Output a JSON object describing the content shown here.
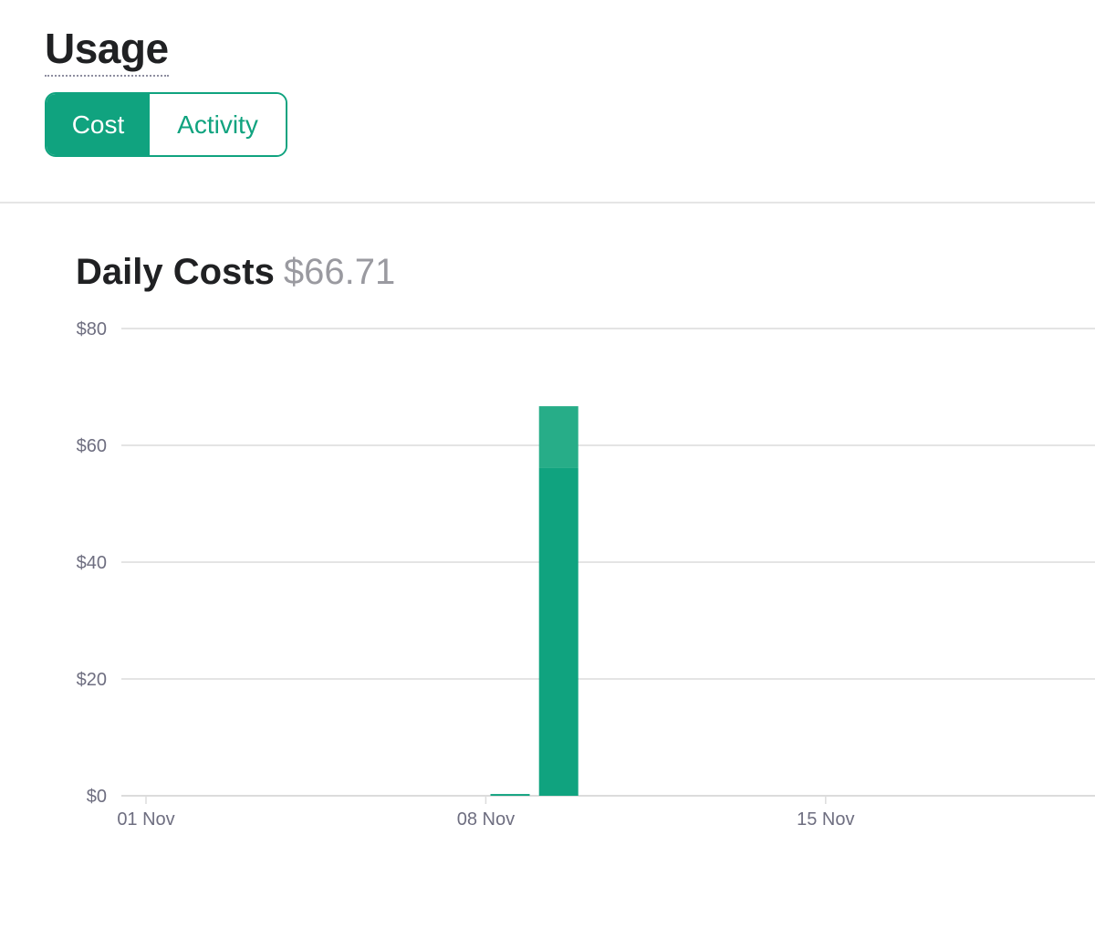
{
  "header": {
    "title": "Usage",
    "tabs": [
      {
        "label": "Cost",
        "active": true
      },
      {
        "label": "Activity",
        "active": false
      }
    ]
  },
  "chart_section": {
    "title": "Daily Costs",
    "total": "$66.71"
  },
  "colors": {
    "accent": "#10a37f",
    "accent_light": "#27ad88",
    "grid": "#dcdcdc"
  },
  "chart_data": {
    "type": "bar",
    "stacked": true,
    "categories": [
      "01 Nov",
      "02 Nov",
      "03 Nov",
      "04 Nov",
      "05 Nov",
      "06 Nov",
      "07 Nov",
      "08 Nov",
      "09 Nov",
      "10 Nov",
      "11 Nov",
      "12 Nov",
      "13 Nov",
      "14 Nov",
      "15 Nov",
      "16 Nov",
      "17 Nov",
      "18 Nov",
      "19 Nov"
    ],
    "x_tick_labels": [
      "01 Nov",
      "08 Nov",
      "15 Nov"
    ],
    "series": [
      {
        "values": [
          0,
          0,
          0,
          0,
          0,
          0,
          0,
          0.3,
          56.1,
          0,
          0,
          0,
          0,
          0,
          0,
          0,
          0,
          0,
          0
        ]
      },
      {
        "values": [
          0,
          0,
          0,
          0,
          0,
          0,
          0,
          0,
          10.6,
          0,
          0,
          0,
          0,
          0,
          0,
          0,
          0,
          0,
          0
        ]
      }
    ],
    "y_ticks": [
      0,
      20,
      40,
      60,
      80
    ],
    "y_tick_labels": [
      "$0",
      "$20",
      "$40",
      "$60",
      "$80"
    ],
    "ylim": [
      0,
      80
    ],
    "grid": true,
    "title": "",
    "xlabel": "",
    "ylabel": ""
  }
}
